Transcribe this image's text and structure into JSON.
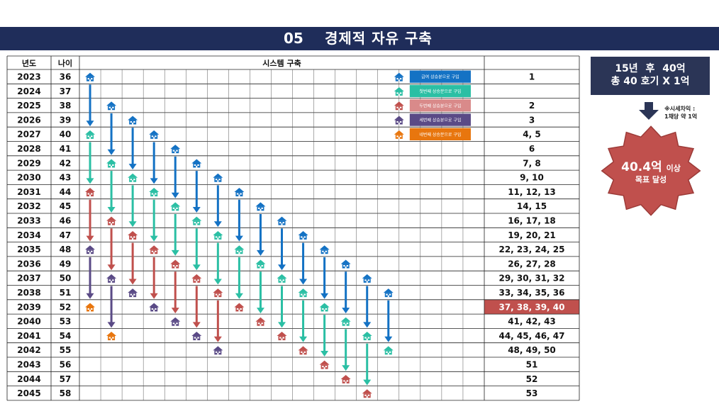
{
  "header": {
    "number": "05",
    "title": "경제적 자유 구축"
  },
  "table": {
    "col_year": "년도",
    "col_age": "나이",
    "col_system": "시스템 구축",
    "rows": [
      {
        "year": "2023",
        "age": "36",
        "houses": "1"
      },
      {
        "year": "2024",
        "age": "37",
        "houses": ""
      },
      {
        "year": "2025",
        "age": "38",
        "houses": "2"
      },
      {
        "year": "2026",
        "age": "39",
        "houses": "3"
      },
      {
        "year": "2027",
        "age": "40",
        "houses": "4, 5"
      },
      {
        "year": "2028",
        "age": "41",
        "houses": "6"
      },
      {
        "year": "2029",
        "age": "42",
        "houses": "7, 8"
      },
      {
        "year": "2030",
        "age": "43",
        "houses": "9, 10"
      },
      {
        "year": "2031",
        "age": "44",
        "houses": "11, 12, 13"
      },
      {
        "year": "2032",
        "age": "45",
        "houses": "14, 15"
      },
      {
        "year": "2033",
        "age": "46",
        "houses": "16, 17, 18"
      },
      {
        "year": "2034",
        "age": "47",
        "houses": "19, 20, 21"
      },
      {
        "year": "2035",
        "age": "48",
        "houses": "22, 23, 24, 25"
      },
      {
        "year": "2036",
        "age": "49",
        "houses": "26, 27, 28"
      },
      {
        "year": "2037",
        "age": "50",
        "houses": "29, 30, 31, 32"
      },
      {
        "year": "2038",
        "age": "51",
        "houses": "33, 34, 35, 36"
      },
      {
        "year": "2039",
        "age": "52",
        "houses": "37, 38, 39, 40"
      },
      {
        "year": "2040",
        "age": "53",
        "houses": "41, 42, 43"
      },
      {
        "year": "2041",
        "age": "54",
        "houses": "44, 45, 46, 47"
      },
      {
        "year": "2042",
        "age": "55",
        "houses": "48, 49, 50"
      },
      {
        "year": "2043",
        "age": "56",
        "houses": "51"
      },
      {
        "year": "2044",
        "age": "57",
        "houses": "52"
      },
      {
        "year": "2045",
        "age": "58",
        "houses": "53"
      }
    ],
    "highlight_row": 16
  },
  "legend": [
    {
      "label": "급여 상승분으로 구입",
      "color": "#1472c4"
    },
    {
      "label": "첫번째 상승분으로 구입",
      "color": "#2bbfa4"
    },
    {
      "label": "두번째 상승분으로 구입",
      "color": "#d98a8a"
    },
    {
      "label": "세번째 상승분으로 구입",
      "color": "#5a4a86"
    },
    {
      "label": "네번째 상승분으로 구입",
      "color": "#e8760e"
    }
  ],
  "colors": {
    "blue": "#1472c4",
    "teal": "#2bbfa4",
    "red": "#c0504d",
    "purple": "#5a4a86",
    "orange": "#e8760e",
    "header_bar": "#1f2d5a",
    "highlight": "#c0504d"
  },
  "chains": [
    {
      "col": 0,
      "colors": [
        "blue",
        "teal",
        "red",
        "purple",
        "orange"
      ],
      "start": 0
    },
    {
      "col": 1,
      "colors": [
        "blue",
        "teal",
        "red",
        "purple",
        "orange"
      ],
      "start": 2
    },
    {
      "col": 2,
      "colors": [
        "blue",
        "teal",
        "red",
        "purple"
      ],
      "start": 3
    },
    {
      "col": 3,
      "colors": [
        "blue",
        "teal",
        "red",
        "purple"
      ],
      "start": 4
    },
    {
      "col": 4,
      "colors": [
        "blue",
        "teal",
        "red",
        "purple"
      ],
      "start": 5
    },
    {
      "col": 5,
      "colors": [
        "blue",
        "teal",
        "red",
        "purple"
      ],
      "start": 6
    },
    {
      "col": 6,
      "colors": [
        "blue",
        "teal",
        "red",
        "purple"
      ],
      "start": 7
    },
    {
      "col": 7,
      "colors": [
        "blue",
        "teal",
        "red"
      ],
      "start": 8
    },
    {
      "col": 8,
      "colors": [
        "blue",
        "teal",
        "red"
      ],
      "start": 9
    },
    {
      "col": 9,
      "colors": [
        "blue",
        "teal",
        "red"
      ],
      "start": 10
    },
    {
      "col": 10,
      "colors": [
        "blue",
        "teal",
        "red"
      ],
      "start": 11
    },
    {
      "col": 11,
      "colors": [
        "blue",
        "teal",
        "red"
      ],
      "start": 12
    },
    {
      "col": 12,
      "colors": [
        "blue",
        "teal",
        "red"
      ],
      "start": 13
    },
    {
      "col": 13,
      "colors": [
        "blue",
        "teal",
        "red"
      ],
      "start": 14
    },
    {
      "col": 14,
      "colors": [
        "blue",
        "teal"
      ],
      "start": 15
    }
  ],
  "summary": {
    "line1": "15년 후  40억",
    "line2": "총 40 호기 X 1억"
  },
  "note": {
    "line1": "※시세차익 :",
    "line2": "1채당 약 1억"
  },
  "goal": {
    "main": "40.4억",
    "suffix": "이상",
    "sub": "목표 달성"
  }
}
